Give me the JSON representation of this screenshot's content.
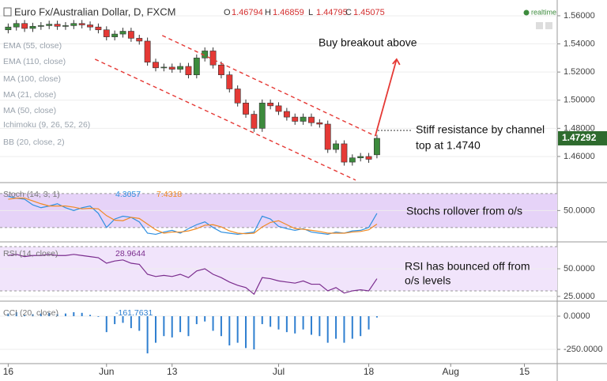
{
  "chart_data": [
    {
      "type": "candlestick",
      "title": "Euro Fx/Australian Dollar, D, FXCM",
      "readout": [
        {
          "label": "O",
          "value": 1.46794
        },
        {
          "label": "H",
          "value": 1.46859
        },
        {
          "label": "L",
          "value": 1.44795
        },
        {
          "label": "C",
          "value": 1.45075
        }
      ],
      "status": "realtime",
      "indicators": [
        "EMA (55, close)",
        "EMA (110, close)",
        "MA (100, close)",
        "MA (21, close)",
        "MA (50, close)",
        "Ichimoku (9, 26, 52, 26)",
        "BB (20, close, 2)"
      ],
      "xlim": [
        -1,
        67
      ],
      "xticks": [
        {
          "value": 0,
          "label": "16"
        },
        {
          "value": 12,
          "label": "Jun"
        },
        {
          "value": 20,
          "label": "13"
        },
        {
          "value": 33,
          "label": "Jul"
        },
        {
          "value": 44,
          "label": "18"
        },
        {
          "value": 54,
          "label": "Aug"
        },
        {
          "value": 63,
          "label": "15"
        }
      ],
      "ylim": [
        1.442,
        1.5712
      ],
      "yticks": [
        {
          "value": 1.46,
          "label": "1.46000"
        },
        {
          "value": 1.48,
          "label": "1.48000"
        },
        {
          "value": 1.5,
          "label": "1.50000"
        },
        {
          "value": 1.52,
          "label": "1.52000"
        },
        {
          "value": 1.54,
          "label": "1.54000"
        },
        {
          "value": 1.56,
          "label": "1.56000"
        }
      ],
      "last_price": 1.47292,
      "up_color": "#3d8b3d",
      "down_color": "#e53935",
      "open": [
        1.55,
        1.552,
        1.5545,
        1.551,
        1.5525,
        1.553,
        1.554,
        1.5525,
        1.553,
        1.5545,
        1.5535,
        1.552,
        1.55,
        1.545,
        1.547,
        1.549,
        1.544,
        1.542,
        1.527,
        1.523,
        1.5235,
        1.522,
        1.524,
        1.518,
        1.53,
        1.535,
        1.525,
        1.518,
        1.508,
        1.498,
        1.49,
        1.48,
        1.498,
        1.496,
        1.492,
        1.488,
        1.485,
        1.488,
        1.484,
        1.483,
        1.465,
        1.469,
        1.456,
        1.459,
        1.46,
        1.4612
      ],
      "high": [
        1.5545,
        1.557,
        1.557,
        1.555,
        1.5555,
        1.5565,
        1.5565,
        1.5555,
        1.557,
        1.557,
        1.556,
        1.5545,
        1.5525,
        1.5495,
        1.5515,
        1.5515,
        1.5465,
        1.5445,
        1.5295,
        1.526,
        1.526,
        1.5265,
        1.5265,
        1.5325,
        1.5375,
        1.5375,
        1.5275,
        1.5205,
        1.5105,
        1.5005,
        1.4925,
        1.5005,
        1.5005,
        1.4985,
        1.4945,
        1.4905,
        1.4905,
        1.4905,
        1.4865,
        1.4855,
        1.4715,
        1.4715,
        1.4615,
        1.4625,
        1.4625,
        1.4754
      ],
      "low": [
        1.5475,
        1.5495,
        1.5485,
        1.5485,
        1.55,
        1.5505,
        1.55,
        1.55,
        1.5505,
        1.551,
        1.5495,
        1.5475,
        1.5425,
        1.5425,
        1.5445,
        1.5415,
        1.5395,
        1.5245,
        1.5205,
        1.5205,
        1.5195,
        1.5195,
        1.5155,
        1.5155,
        1.5275,
        1.5225,
        1.5155,
        1.5055,
        1.4955,
        1.4875,
        1.4775,
        1.4775,
        1.4935,
        1.4895,
        1.4855,
        1.4825,
        1.4825,
        1.4815,
        1.4805,
        1.4625,
        1.4625,
        1.4535,
        1.4535,
        1.4565,
        1.4555,
        1.4587
      ],
      "close": [
        1.552,
        1.5545,
        1.551,
        1.5525,
        1.553,
        1.554,
        1.5525,
        1.553,
        1.5545,
        1.5535,
        1.552,
        1.55,
        1.545,
        1.547,
        1.549,
        1.544,
        1.542,
        1.527,
        1.523,
        1.5235,
        1.522,
        1.524,
        1.518,
        1.53,
        1.535,
        1.525,
        1.518,
        1.508,
        1.498,
        1.49,
        1.48,
        1.498,
        1.496,
        1.492,
        1.488,
        1.485,
        1.488,
        1.484,
        1.483,
        1.465,
        1.469,
        1.456,
        1.459,
        1.46,
        1.458,
        1.4729
      ],
      "trendlines": [
        {
          "color": "#e53935",
          "x": [
            18.8,
            44.8
          ],
          "y": [
            1.546,
            1.4746
          ]
        },
        {
          "color": "#e53935",
          "x": [
            10.6,
            42.4
          ],
          "y": [
            1.5291,
            1.4432
          ]
        }
      ],
      "arrow": {
        "color": "#e53935",
        "x": [
          44.8,
          47.4
        ],
        "y": [
          1.4746,
          1.5291
        ]
      },
      "annotations": [
        "Buy breakout above",
        "Stiff resistance by channel",
        "top at 1.4740"
      ]
    },
    {
      "type": "line",
      "title": "Stoch (14, 3, 1)",
      "ylim": [
        -4,
        98
      ],
      "yticks": [
        {
          "value": 50,
          "label": "50.0000"
        }
      ],
      "bands": [
        20,
        80
      ],
      "band_color": "#e6d3f8",
      "series": [
        {
          "name": "%K",
          "color": "#2f8fe0",
          "readout": 4.3057,
          "values": [
            75,
            72,
            70,
            60,
            55,
            58,
            62,
            55,
            50,
            55,
            58,
            45,
            20,
            35,
            40,
            38,
            30,
            10,
            8,
            12,
            15,
            10,
            18,
            25,
            30,
            20,
            12,
            10,
            8,
            10,
            12,
            40,
            35,
            22,
            18,
            15,
            18,
            12,
            10,
            8,
            12,
            10,
            14,
            15,
            20,
            45
          ]
        },
        {
          "name": "%D",
          "color": "#f08a24",
          "readout": 7.4318,
          "values": [
            70,
            72,
            72,
            67,
            62,
            58,
            58,
            58,
            56,
            53,
            54,
            53,
            41,
            33,
            32,
            38,
            36,
            26,
            16,
            10,
            12,
            12,
            14,
            18,
            24,
            25,
            21,
            14,
            10,
            9,
            10,
            21,
            29,
            32,
            25,
            18,
            17,
            15,
            13,
            10,
            10,
            10,
            12,
            13,
            16,
            26
          ]
        }
      ],
      "annotations": [
        "Stochs rollover from o/s"
      ]
    },
    {
      "type": "line",
      "title": "RSI (14, close)",
      "ylim": [
        21.4,
        73.6
      ],
      "yticks": [
        {
          "value": 50,
          "label": "50.0000"
        },
        {
          "value": 25,
          "label": "25.0000"
        }
      ],
      "bands": [
        30,
        70
      ],
      "band_color": "#f1e4fb",
      "series": [
        {
          "name": "RSI",
          "color": "#7b2d8e",
          "readout": 28.9644,
          "values": [
            62,
            63,
            61,
            62,
            62,
            63,
            62,
            62,
            63,
            62,
            61,
            60,
            55,
            57,
            58,
            55,
            54,
            45,
            43,
            44,
            43,
            45,
            42,
            48,
            50,
            45,
            42,
            38,
            35,
            33,
            27,
            42,
            41,
            39,
            38,
            37,
            39,
            36,
            36,
            30,
            33,
            28,
            30,
            31,
            30,
            41
          ]
        }
      ],
      "annotations": [
        "RSI has bounced off from",
        "o/s levels"
      ]
    },
    {
      "type": "bar",
      "title": "CCI (20, close)",
      "ylim": [
        -357,
        107
      ],
      "yticks": [
        {
          "value": 0,
          "label": "0.0000"
        },
        {
          "value": -250,
          "label": "-250.0000"
        }
      ],
      "series": [
        {
          "name": "CCI",
          "color": "#2f7fd0",
          "readout": -161.7631,
          "values": [
            20,
            30,
            10,
            15,
            20,
            25,
            15,
            20,
            30,
            25,
            10,
            -5,
            -120,
            -60,
            -50,
            -90,
            -110,
            -280,
            -200,
            -150,
            -160,
            -120,
            -150,
            -60,
            -40,
            -110,
            -150,
            -220,
            -200,
            -240,
            -250,
            -60,
            -80,
            -100,
            -120,
            -130,
            -100,
            -140,
            -150,
            -200,
            -170,
            -200,
            -170,
            -150,
            -100,
            -10
          ]
        }
      ]
    }
  ]
}
